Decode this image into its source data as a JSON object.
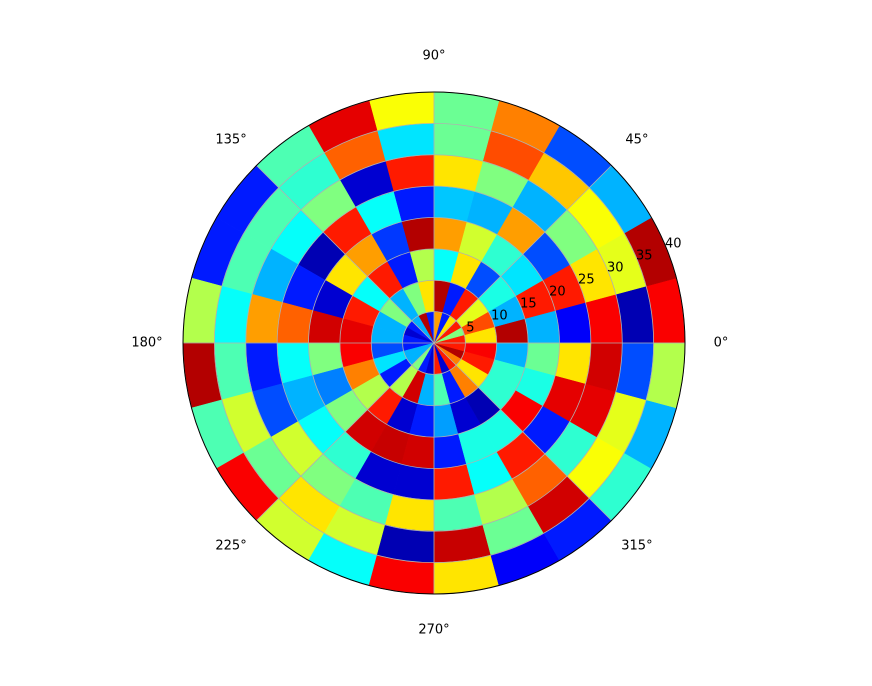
{
  "chart_data": {
    "type": "polar_mesh",
    "colormap": "jet",
    "grid": true,
    "theta_edges": [
      0,
      15,
      30,
      45,
      60,
      75,
      90,
      105,
      120,
      135,
      150,
      165,
      180,
      195,
      210,
      225,
      240,
      255,
      270,
      285,
      300,
      315,
      330,
      345,
      360
    ],
    "r_edges": [
      0,
      5,
      10,
      15,
      20,
      25,
      30,
      35,
      40
    ],
    "rlim": [
      0,
      40
    ],
    "rticks": [
      5,
      10,
      15,
      20,
      25,
      30,
      35,
      40
    ],
    "rlabel_angle": 22.5,
    "thetaticks": [
      {
        "value": 0,
        "label": "0°"
      },
      {
        "value": 45,
        "label": "45°"
      },
      {
        "value": 90,
        "label": "90°"
      },
      {
        "value": 135,
        "label": "135°"
      },
      {
        "value": 180,
        "label": "180°"
      },
      {
        "value": 225,
        "label": "225°"
      },
      {
        "value": 270,
        "label": "270°"
      },
      {
        "value": 315,
        "label": "315°"
      }
    ],
    "values": [
      [
        0.85,
        0.5,
        0.85,
        0.65,
        0.15,
        0.72,
        0.15,
        0.95,
        0.3,
        0.15,
        0.08,
        0.15,
        0.15,
        0.3,
        0.3,
        0.5,
        0.15,
        0.08,
        0.85,
        0.08,
        0.85,
        0.75,
        0.95,
        0.85
      ],
      [
        0.65,
        0.8,
        0.6,
        0.85,
        0.15,
        0.95,
        0.65,
        0.5,
        0.3,
        0.5,
        0.3,
        0.3,
        0.2,
        0.35,
        0.15,
        0.55,
        0.92,
        0.3,
        0.45,
        0.15,
        0.75,
        0.65,
        0.85,
        0.88
      ],
      [
        0.95,
        0.3,
        0.4,
        0.2,
        0.65,
        0.38,
        0.55,
        0.15,
        0.85,
        0.38,
        0.85,
        0.9,
        0.88,
        0.75,
        0.55,
        0.85,
        0.08,
        0.15,
        0.28,
        0.08,
        0.05,
        0.42,
        0.42,
        0.3
      ],
      [
        0.3,
        0.85,
        0.35,
        0.42,
        0.58,
        0.72,
        0.95,
        0.18,
        0.72,
        0.65,
        0.08,
        0.92,
        0.5,
        0.25,
        0.5,
        0.92,
        0.93,
        0.92,
        0.15,
        0.4,
        0.4,
        0.88,
        0.4,
        0.48
      ],
      [
        0.12,
        0.85,
        0.2,
        0.72,
        0.3,
        0.32,
        0.15,
        0.38,
        0.85,
        0.05,
        0.15,
        0.78,
        0.38,
        0.3,
        0.38,
        0.42,
        0.08,
        0.08,
        0.85,
        0.38,
        0.85,
        0.15,
        0.9,
        0.65
      ],
      [
        0.88,
        0.65,
        0.5,
        0.3,
        0.5,
        0.65,
        0.85,
        0.08,
        0.5,
        0.38,
        0.3,
        0.72,
        0.15,
        0.2,
        0.58,
        0.5,
        0.45,
        0.65,
        0.45,
        0.55,
        0.78,
        0.42,
        0.9,
        0.92
      ],
      [
        0.05,
        0.6,
        0.62,
        0.68,
        0.8,
        0.48,
        0.35,
        0.78,
        0.42,
        0.45,
        0.45,
        0.38,
        0.45,
        0.58,
        0.48,
        0.65,
        0.58,
        0.05,
        0.93,
        0.48,
        0.92,
        0.62,
        0.6,
        0.2
      ],
      [
        0.88,
        0.95,
        0.3,
        0.2,
        0.75,
        0.48,
        0.62,
        0.9,
        0.45,
        0.15,
        0.15,
        0.55,
        0.95,
        0.45,
        0.88,
        0.58,
        0.38,
        0.88,
        0.65,
        0.12,
        0.15,
        0.42,
        0.3,
        0.55
      ]
    ]
  }
}
